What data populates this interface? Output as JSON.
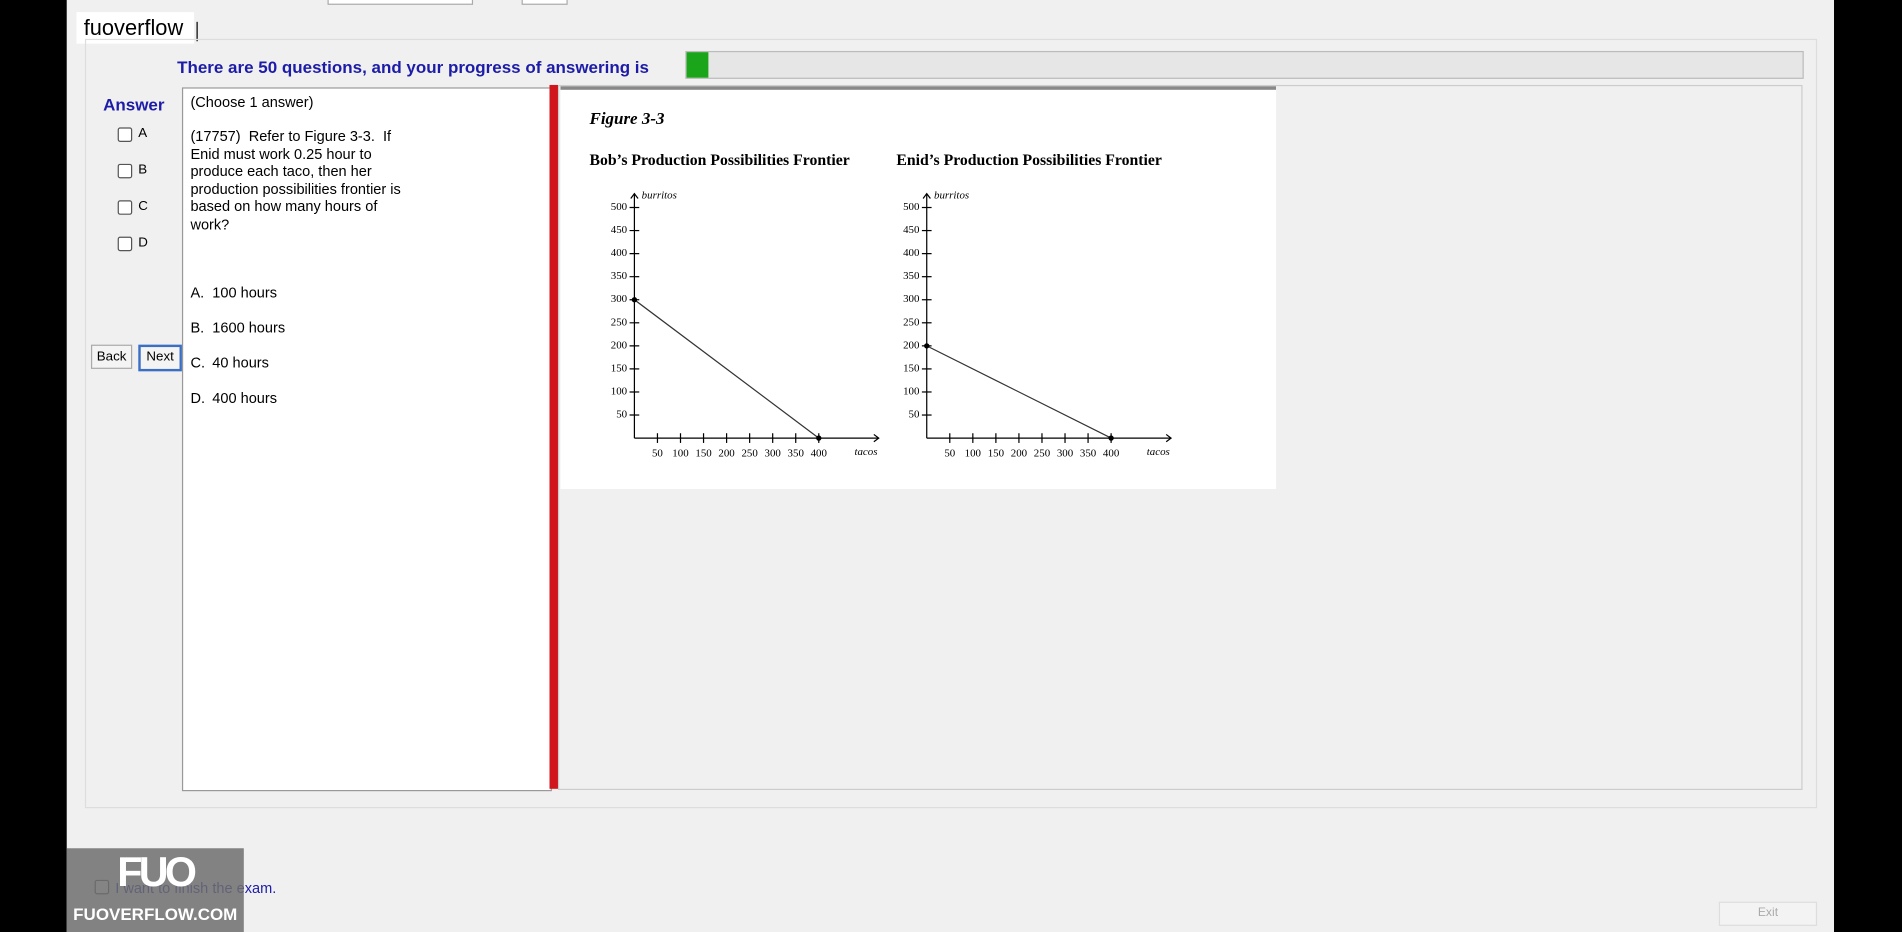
{
  "header": {
    "site_label": "fuoverflow"
  },
  "progress": {
    "text": "There are 50 questions, and your progress of answering is",
    "total": 50,
    "answered": 1
  },
  "answer_panel": {
    "title": "Answer",
    "options": [
      "A",
      "B",
      "C",
      "D"
    ]
  },
  "navigation": {
    "back": "Back",
    "next": "Next"
  },
  "question": {
    "instruction": "(Choose 1 answer)",
    "text": "(17757)  Refer to Figure 3-3.  If Enid must work 0.25 hour to produce each taco, then her production possibilities frontier is based on how many hours of work?",
    "choices": [
      {
        "letter": "A.",
        "text": "100 hours"
      },
      {
        "letter": "B.",
        "text": "1600 hours"
      },
      {
        "letter": "C.",
        "text": "40 hours"
      },
      {
        "letter": "D.",
        "text": "400 hours"
      }
    ]
  },
  "figure": {
    "title": "Figure 3-3",
    "charts": [
      {
        "type": "line",
        "title": "Bob’s Production Possibilities Frontier",
        "x_label": "tacos",
        "y_label": "burritos",
        "x": [
          0,
          400
        ],
        "values": [
          300,
          0
        ],
        "xlim": [
          0,
          530
        ],
        "ylim": [
          0,
          530
        ],
        "xticks": [
          50,
          100,
          150,
          200,
          250,
          300,
          350,
          400
        ],
        "yticks": [
          50,
          100,
          150,
          200,
          250,
          300,
          350,
          400,
          450,
          500
        ]
      },
      {
        "type": "line",
        "title": "Enid’s Production Possibilities Frontier",
        "x_label": "tacos",
        "y_label": "burritos",
        "x": [
          0,
          400
        ],
        "values": [
          200,
          0
        ],
        "xlim": [
          0,
          530
        ],
        "ylim": [
          0,
          530
        ],
        "xticks": [
          50,
          100,
          150,
          200,
          250,
          300,
          350,
          400
        ],
        "yticks": [
          50,
          100,
          150,
          200,
          250,
          300,
          350,
          400,
          450,
          500
        ]
      }
    ]
  },
  "footer": {
    "finish_label": "I want to finish the exam.",
    "exit": "Exit"
  },
  "watermark": {
    "logo": "FUO",
    "site": "FUOVERFLOW.COM"
  }
}
